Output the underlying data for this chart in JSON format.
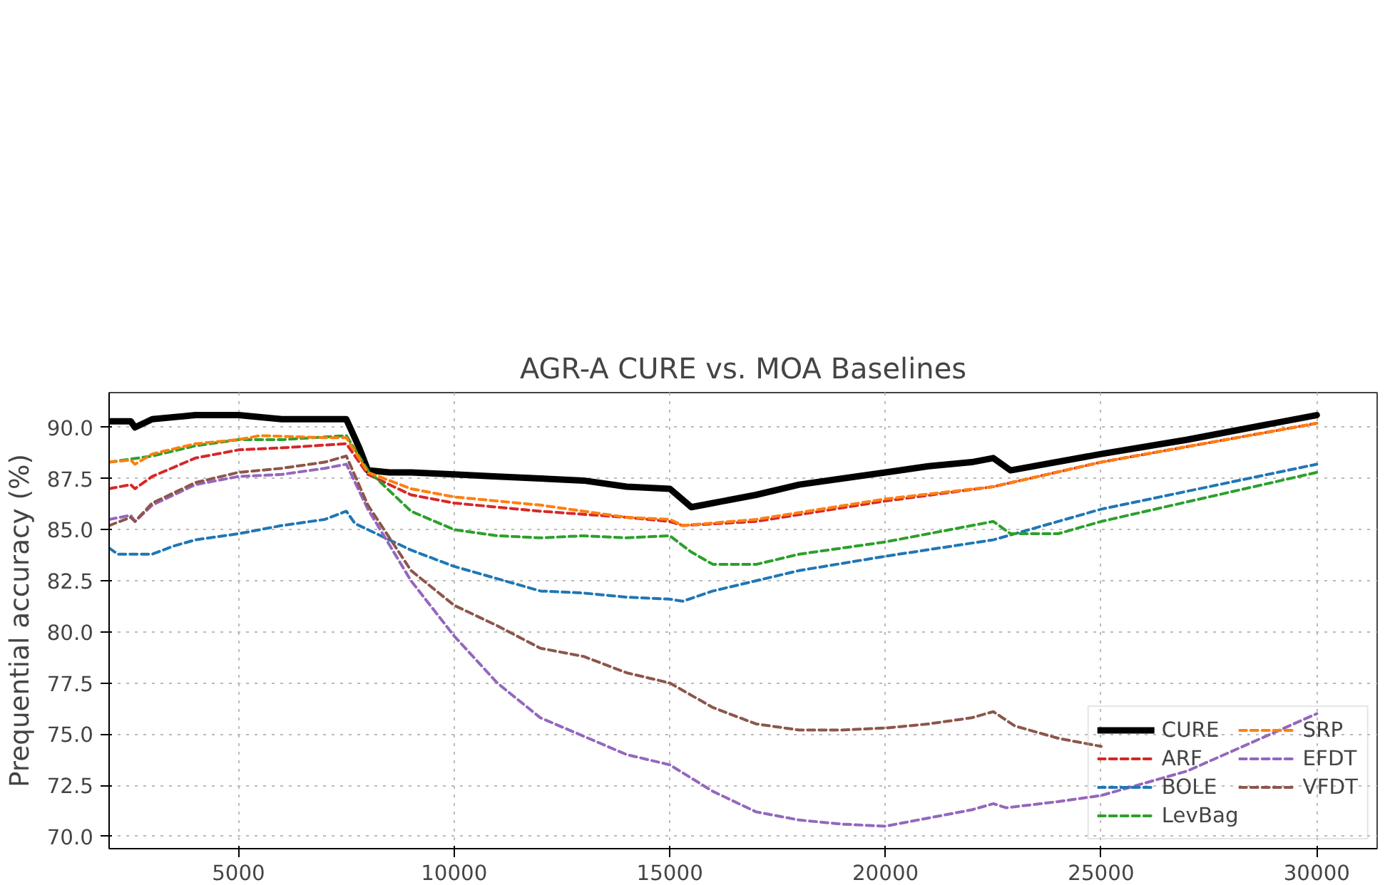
{
  "chart_data": {
    "type": "line",
    "title": "AGR-A CURE vs. MOA Baselines",
    "ylabel": "Prequential accuracy (%)",
    "xlim": [
      2000,
      31400
    ],
    "ylim": [
      69.4,
      91.7
    ],
    "xticks": [
      5000,
      10000,
      15000,
      20000,
      25000,
      30000
    ],
    "yticks": [
      {
        "value": 70,
        "label": "70.0"
      },
      {
        "value": 72.5,
        "label": "72.5"
      },
      {
        "value": 75,
        "label": "75.0"
      },
      {
        "value": 77.5,
        "label": "77.5"
      },
      {
        "value": 80,
        "label": "80.0"
      },
      {
        "value": 82.5,
        "label": "82.5"
      },
      {
        "value": 85,
        "label": "85.0"
      },
      {
        "value": 87.5,
        "label": "87.5"
      },
      {
        "value": 90,
        "label": "90.0"
      }
    ],
    "grid": true,
    "legend": "bottom right",
    "marker": "none",
    "series": [
      {
        "name": "CURE",
        "color": "#000000",
        "line_style": "solid",
        "x": [
          2000,
          2500,
          2600,
          3000,
          4000,
          5000,
          6000,
          7000,
          7500,
          7800,
          8000,
          8500,
          9000,
          10000,
          11000,
          12000,
          13000,
          14000,
          15000,
          15500,
          16000,
          17000,
          18000,
          19000,
          20000,
          21000,
          22000,
          22500,
          22900,
          25000,
          27000,
          30000
        ],
        "values": [
          90.3,
          90.3,
          90.0,
          90.4,
          90.6,
          90.6,
          90.4,
          90.4,
          90.4,
          89.0,
          87.9,
          87.8,
          87.8,
          87.7,
          87.6,
          87.5,
          87.4,
          87.1,
          87.0,
          86.1,
          86.3,
          86.7,
          87.2,
          87.5,
          87.8,
          88.1,
          88.3,
          88.5,
          87.9,
          88.7,
          89.4,
          90.6
        ]
      },
      {
        "name": "ARF",
        "color": "#d62728",
        "line_style": "dashed",
        "x": [
          2000,
          2500,
          2600,
          3000,
          4000,
          5000,
          6000,
          7500,
          8000,
          9000,
          10000,
          12000,
          14000,
          15000,
          15300,
          17000,
          20000,
          22500,
          25000,
          30000
        ],
        "values": [
          87.0,
          87.2,
          87.0,
          87.6,
          88.5,
          88.9,
          89.0,
          89.2,
          87.7,
          86.7,
          86.3,
          85.9,
          85.6,
          85.4,
          85.2,
          85.4,
          86.4,
          87.1,
          88.3,
          90.2
        ]
      },
      {
        "name": "BOLE",
        "color": "#1f77b4",
        "line_style": "dashed",
        "x": [
          2000,
          2200,
          3000,
          3500,
          4000,
          5000,
          6000,
          7000,
          7500,
          7700,
          8000,
          9000,
          10000,
          11000,
          12000,
          13000,
          14000,
          15000,
          15300,
          16000,
          17000,
          18000,
          20000,
          22500,
          25000,
          30000
        ],
        "values": [
          84.1,
          83.8,
          83.8,
          84.2,
          84.5,
          84.8,
          85.2,
          85.5,
          85.9,
          85.3,
          85.0,
          84.0,
          83.2,
          82.6,
          82.0,
          81.9,
          81.7,
          81.6,
          81.5,
          82.0,
          82.5,
          83.0,
          83.7,
          84.5,
          86.0,
          88.2
        ]
      },
      {
        "name": "LevBag",
        "color": "#2ca02c",
        "line_style": "dashed",
        "x": [
          2000,
          3000,
          4000,
          5000,
          6000,
          7500,
          8000,
          9000,
          10000,
          11000,
          12000,
          13000,
          14000,
          15000,
          15500,
          16000,
          17000,
          18000,
          20000,
          22500,
          22900,
          24000,
          25000,
          30000
        ],
        "values": [
          88.3,
          88.6,
          89.1,
          89.4,
          89.4,
          89.6,
          87.9,
          85.9,
          85.0,
          84.7,
          84.6,
          84.7,
          84.6,
          84.7,
          83.9,
          83.3,
          83.3,
          83.8,
          84.4,
          85.4,
          84.8,
          84.8,
          85.4,
          87.8
        ]
      },
      {
        "name": "SRP",
        "color": "#ff7f0e",
        "line_style": "dashed",
        "x": [
          2000,
          2500,
          2600,
          3000,
          4000,
          5000,
          5500,
          7000,
          7500,
          8000,
          9000,
          10000,
          12000,
          13000,
          14000,
          15000,
          15300,
          17000,
          20000,
          22500,
          25000,
          30000
        ],
        "values": [
          88.3,
          88.4,
          88.2,
          88.7,
          89.2,
          89.4,
          89.6,
          89.5,
          89.5,
          87.8,
          87.0,
          86.6,
          86.2,
          85.9,
          85.6,
          85.5,
          85.2,
          85.5,
          86.5,
          87.1,
          88.3,
          90.2
        ]
      },
      {
        "name": "EFDT",
        "color": "#9467bd",
        "line_style": "dashed",
        "x": [
          2000,
          2500,
          2600,
          3000,
          4000,
          5000,
          6000,
          7000,
          7500,
          8000,
          9000,
          10000,
          11000,
          12000,
          13000,
          14000,
          15000,
          16000,
          17000,
          18000,
          19000,
          20000,
          21000,
          22000,
          22500,
          22800,
          24000,
          25000,
          27000,
          30000
        ],
        "values": [
          85.5,
          85.7,
          85.4,
          86.2,
          87.2,
          87.6,
          87.7,
          88.0,
          88.2,
          86.0,
          82.5,
          79.8,
          77.5,
          75.8,
          74.9,
          74.0,
          73.5,
          72.2,
          71.2,
          70.8,
          70.6,
          70.5,
          70.9,
          71.3,
          71.6,
          71.4,
          71.7,
          72.0,
          73.2,
          76.0
        ]
      },
      {
        "name": "VFDT",
        "color": "#8c564b",
        "line_style": "dashed",
        "x": [
          2000,
          2500,
          2600,
          3000,
          4000,
          5000,
          6000,
          7000,
          7500,
          8000,
          9000,
          10000,
          11000,
          12000,
          13000,
          14000,
          15000,
          16000,
          17000,
          18000,
          19000,
          20000,
          21000,
          22000,
          22500,
          23000,
          24000,
          25000
        ],
        "values": [
          85.2,
          85.6,
          85.4,
          86.3,
          87.3,
          87.8,
          88.0,
          88.3,
          88.6,
          86.2,
          83.0,
          81.3,
          80.3,
          79.2,
          78.8,
          78.0,
          77.5,
          76.3,
          75.5,
          75.2,
          75.2,
          75.3,
          75.5,
          75.8,
          76.1,
          75.4,
          74.8,
          74.4
        ]
      }
    ]
  }
}
